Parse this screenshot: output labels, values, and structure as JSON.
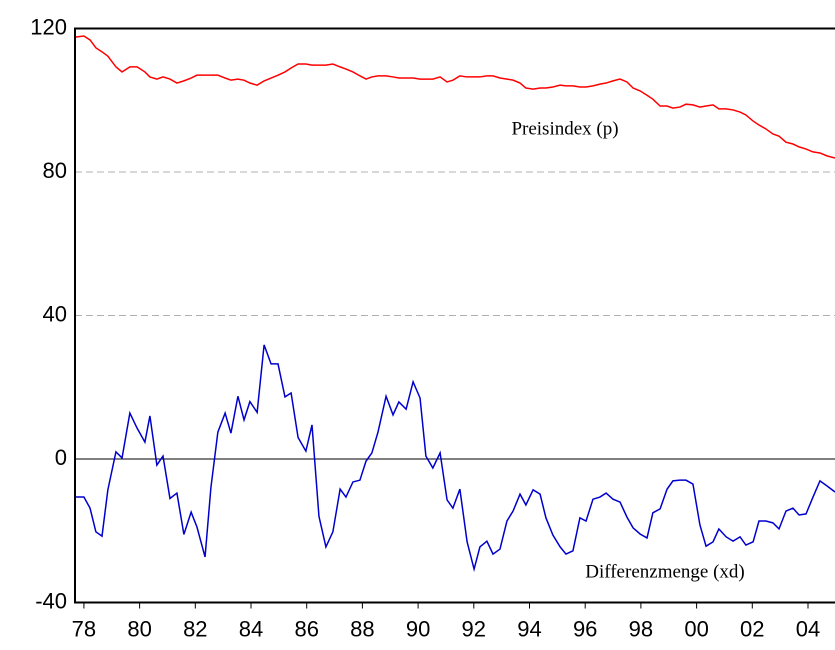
{
  "chart_data": {
    "type": "line",
    "x": [
      77.68,
      78.0,
      78.22,
      78.43,
      78.65,
      78.86,
      79.15,
      79.37,
      79.65,
      79.91,
      80.19,
      80.37,
      80.62,
      80.84,
      81.09,
      81.34,
      81.59,
      81.85,
      82.06,
      82.35,
      82.56,
      82.81,
      83.07,
      83.28,
      83.53,
      83.75,
      83.96,
      84.22,
      84.47,
      84.72,
      84.97,
      85.22,
      85.44,
      85.69,
      85.97,
      86.19,
      86.44,
      86.69,
      86.94,
      87.2,
      87.41,
      87.66,
      87.91,
      88.13,
      88.34,
      88.56,
      88.85,
      89.1,
      89.31,
      89.57,
      89.82,
      90.07,
      90.28,
      90.53,
      90.79,
      91.04,
      91.25,
      91.5,
      91.76,
      92.01,
      92.22,
      92.47,
      92.69,
      92.94,
      93.19,
      93.41,
      93.66,
      93.87,
      94.13,
      94.38,
      94.59,
      94.84,
      95.1,
      95.31,
      95.56,
      95.81,
      96.03,
      96.28,
      96.53,
      96.75,
      97.0,
      97.25,
      97.5,
      97.72,
      97.97,
      98.22,
      98.43,
      98.69,
      98.94,
      99.15,
      99.4,
      99.62,
      99.87,
      100.12,
      100.34,
      100.59,
      100.8,
      101.06,
      101.31,
      101.56,
      101.77,
      102.03,
      102.24,
      102.49,
      102.74,
      102.96,
      103.21,
      103.46,
      103.68,
      103.93,
      104.18,
      104.43,
      104.68,
      104.97
    ],
    "series": [
      {
        "name": "Preisindex (p)",
        "color": "#ff0000",
        "values": [
          117.6,
          117.9,
          116.8,
          114.6,
          113.5,
          112.3,
          109.3,
          107.9,
          109.3,
          109.3,
          107.9,
          106.5,
          105.9,
          106.5,
          105.9,
          104.8,
          105.4,
          106.2,
          107,
          107,
          107,
          107,
          106.2,
          105.6,
          105.9,
          105.6,
          104.8,
          104.2,
          105.4,
          106.2,
          107,
          107.9,
          109,
          110.1,
          110.1,
          109.8,
          109.8,
          109.8,
          110.1,
          109.3,
          108.7,
          107.9,
          106.8,
          105.9,
          106.5,
          106.8,
          106.8,
          106.5,
          106.2,
          106.2,
          106.2,
          105.9,
          105.9,
          105.9,
          106.5,
          105.1,
          105.6,
          106.8,
          106.5,
          106.5,
          106.5,
          106.8,
          106.8,
          106.2,
          105.9,
          105.6,
          104.8,
          103.4,
          103.1,
          103.4,
          103.4,
          103.7,
          104.2,
          104,
          104,
          103.7,
          103.7,
          104,
          104.5,
          104.8,
          105.4,
          105.9,
          105.1,
          103.4,
          102.6,
          101.4,
          100.3,
          98.4,
          98.4,
          97.8,
          98.1,
          98.9,
          98.7,
          98.1,
          98.4,
          98.7,
          97.6,
          97.6,
          97.3,
          96.7,
          95.9,
          94.2,
          93.1,
          92,
          90.6,
          90,
          88.3,
          87.8,
          87,
          86.4,
          85.6,
          85.3,
          84.5,
          83.9
        ]
      },
      {
        "name": "Differenzmenge (xd)",
        "color": "#0000cc",
        "values": [
          -10.6,
          -10.6,
          -13.7,
          -20.3,
          -21.5,
          -8.6,
          2,
          0.3,
          12.8,
          8.6,
          4.7,
          12,
          -1.7,
          0.8,
          -11,
          -9.5,
          -21,
          -14.8,
          -19,
          -27.3,
          -8,
          7.5,
          12.8,
          7.2,
          17.5,
          10.9,
          16,
          13,
          31.8,
          26.5,
          26.5,
          17.3,
          18.4,
          6,
          2.2,
          9.5,
          -16,
          -24.5,
          -20.3,
          -8.4,
          -10.6,
          -6.4,
          -5.9,
          -0.6,
          1.7,
          7.5,
          17.5,
          12.3,
          15.9,
          13.9,
          21.5,
          17,
          0.8,
          -2.5,
          1.7,
          -11.4,
          -13.7,
          -8.4,
          -23.1,
          -30.7,
          -24.5,
          -22.9,
          -26.5,
          -25.1,
          -17.3,
          -14.5,
          -9.8,
          -12.8,
          -8.6,
          -9.8,
          -16.4,
          -21.2,
          -24.5,
          -26.5,
          -25.6,
          -16.4,
          -17.3,
          -11.2,
          -10.6,
          -9.5,
          -11.2,
          -12,
          -16.2,
          -19.2,
          -20.9,
          -22,
          -15,
          -13.9,
          -8.4,
          -6.1,
          -5.9,
          -5.9,
          -7,
          -18.4,
          -24.3,
          -23.1,
          -19.5,
          -21.7,
          -22.9,
          -21.7,
          -24,
          -23.1,
          -17.3,
          -17.3,
          -17.8,
          -19.5,
          -14.5,
          -13.7,
          -15.6,
          -15.3,
          -10.6,
          -6.1,
          -7.5,
          -9.2
        ]
      }
    ],
    "xlim": [
      77.68,
      104.97
    ],
    "xticks": [
      78,
      80,
      82,
      84,
      86,
      88,
      90,
      92,
      94,
      96,
      98,
      {
        "value": 100,
        "label": "00"
      },
      {
        "value": 102,
        "label": "02"
      },
      {
        "value": 104,
        "label": "04"
      }
    ],
    "ylim": [
      -40,
      120
    ],
    "yticks": [
      -40,
      0,
      40,
      80,
      120
    ],
    "grid": true,
    "zero_line": true
  }
}
